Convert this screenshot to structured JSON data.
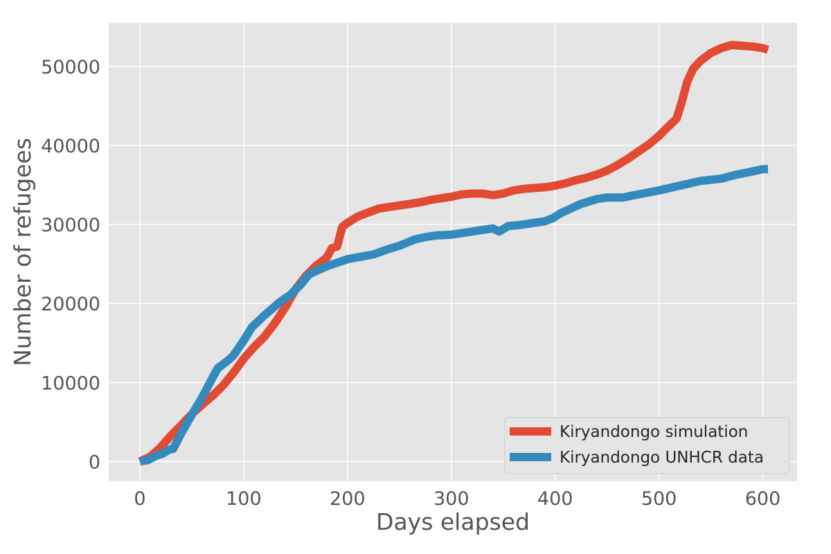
{
  "chart_data": {
    "type": "line",
    "title": "",
    "xlabel": "Days elapsed",
    "ylabel": "Number of refugees",
    "xlim": [
      -30,
      633
    ],
    "ylim": [
      -2500,
      55500
    ],
    "xticks": [
      0,
      100,
      200,
      300,
      400,
      500,
      600
    ],
    "yticks": [
      0,
      10000,
      20000,
      30000,
      40000,
      50000
    ],
    "grid": true,
    "legend_position": "lower-right",
    "colors": {
      "background": "#E5E5E5",
      "grid": "#FFFFFF",
      "tick_text": "#555555"
    },
    "series": [
      {
        "name": "Kiryandongo simulation",
        "color": "#E24A33",
        "points": [
          [
            0,
            0
          ],
          [
            10,
            600
          ],
          [
            20,
            1800
          ],
          [
            30,
            3300
          ],
          [
            40,
            4600
          ],
          [
            50,
            6000
          ],
          [
            60,
            7200
          ],
          [
            70,
            8300
          ],
          [
            80,
            9600
          ],
          [
            90,
            11200
          ],
          [
            100,
            13000
          ],
          [
            110,
            14500
          ],
          [
            120,
            15800
          ],
          [
            130,
            17500
          ],
          [
            140,
            19500
          ],
          [
            150,
            21800
          ],
          [
            160,
            23500
          ],
          [
            170,
            24800
          ],
          [
            180,
            25800
          ],
          [
            185,
            27000
          ],
          [
            190,
            27200
          ],
          [
            195,
            29700
          ],
          [
            200,
            30200
          ],
          [
            210,
            31000
          ],
          [
            220,
            31500
          ],
          [
            230,
            32000
          ],
          [
            240,
            32200
          ],
          [
            250,
            32400
          ],
          [
            260,
            32600
          ],
          [
            270,
            32800
          ],
          [
            280,
            33100
          ],
          [
            290,
            33300
          ],
          [
            300,
            33500
          ],
          [
            310,
            33800
          ],
          [
            320,
            33900
          ],
          [
            330,
            33900
          ],
          [
            340,
            33700
          ],
          [
            350,
            33900
          ],
          [
            360,
            34300
          ],
          [
            370,
            34500
          ],
          [
            380,
            34600
          ],
          [
            390,
            34700
          ],
          [
            400,
            34900
          ],
          [
            410,
            35200
          ],
          [
            420,
            35600
          ],
          [
            430,
            35900
          ],
          [
            440,
            36300
          ],
          [
            450,
            36800
          ],
          [
            460,
            37500
          ],
          [
            470,
            38300
          ],
          [
            480,
            39200
          ],
          [
            490,
            40100
          ],
          [
            500,
            41200
          ],
          [
            510,
            42500
          ],
          [
            517,
            43400
          ],
          [
            522,
            45500
          ],
          [
            527,
            48000
          ],
          [
            533,
            49700
          ],
          [
            540,
            50700
          ],
          [
            550,
            51700
          ],
          [
            560,
            52300
          ],
          [
            570,
            52700
          ],
          [
            580,
            52600
          ],
          [
            590,
            52500
          ],
          [
            600,
            52300
          ],
          [
            605,
            52100
          ]
        ]
      },
      {
        "name": "Kiryandongo UNHCR data",
        "color": "#348ABD",
        "points": [
          [
            0,
            0
          ],
          [
            8,
            200
          ],
          [
            15,
            700
          ],
          [
            22,
            1000
          ],
          [
            28,
            1500
          ],
          [
            32,
            1600
          ],
          [
            40,
            3600
          ],
          [
            50,
            5900
          ],
          [
            60,
            8100
          ],
          [
            70,
            10600
          ],
          [
            75,
            11800
          ],
          [
            85,
            12800
          ],
          [
            90,
            13400
          ],
          [
            100,
            15300
          ],
          [
            108,
            17000
          ],
          [
            120,
            18500
          ],
          [
            135,
            20200
          ],
          [
            145,
            21100
          ],
          [
            155,
            22400
          ],
          [
            163,
            23700
          ],
          [
            180,
            24700
          ],
          [
            200,
            25600
          ],
          [
            225,
            26200
          ],
          [
            240,
            26900
          ],
          [
            250,
            27300
          ],
          [
            265,
            28100
          ],
          [
            275,
            28400
          ],
          [
            285,
            28600
          ],
          [
            300,
            28700
          ],
          [
            315,
            29000
          ],
          [
            325,
            29200
          ],
          [
            340,
            29500
          ],
          [
            346,
            29100
          ],
          [
            355,
            29800
          ],
          [
            365,
            29900
          ],
          [
            375,
            30100
          ],
          [
            390,
            30400
          ],
          [
            398,
            30800
          ],
          [
            405,
            31400
          ],
          [
            415,
            32000
          ],
          [
            425,
            32600
          ],
          [
            440,
            33200
          ],
          [
            450,
            33400
          ],
          [
            465,
            33400
          ],
          [
            480,
            33800
          ],
          [
            500,
            34300
          ],
          [
            520,
            34900
          ],
          [
            540,
            35500
          ],
          [
            560,
            35800
          ],
          [
            575,
            36300
          ],
          [
            590,
            36700
          ],
          [
            600,
            37000
          ],
          [
            605,
            37000
          ]
        ]
      }
    ]
  }
}
